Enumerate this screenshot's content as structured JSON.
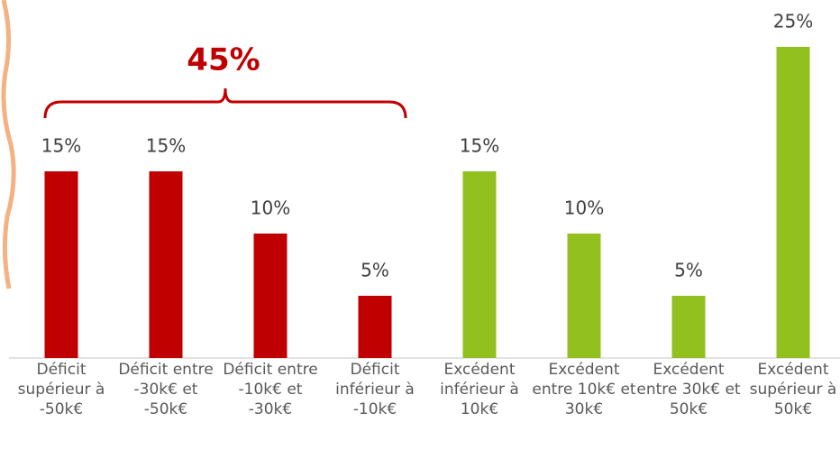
{
  "chart_data": {
    "type": "bar",
    "annotation": "45%",
    "categories": [
      "Déficit supérieur à -50k€",
      "Déficit entre -30k€ et -50k€",
      "Déficit entre -10k€ et -30k€",
      "Déficit inférieur à -10k€",
      "Excédent inférieur à 10k€",
      "Excédent entre 10k€ et 30k€",
      "Excédent entre 30k€ et 50k€",
      "Excédent supérieur à 50k€"
    ],
    "values": [
      15,
      15,
      10,
      5,
      15,
      10,
      5,
      25
    ],
    "value_labels": [
      "15%",
      "15%",
      "10%",
      "5%",
      "15%",
      "10%",
      "5%",
      "25%"
    ],
    "colors": [
      "#c00000",
      "#c00000",
      "#c00000",
      "#c00000",
      "#92c01f",
      "#92c01f",
      "#92c01f",
      "#92c01f"
    ]
  }
}
